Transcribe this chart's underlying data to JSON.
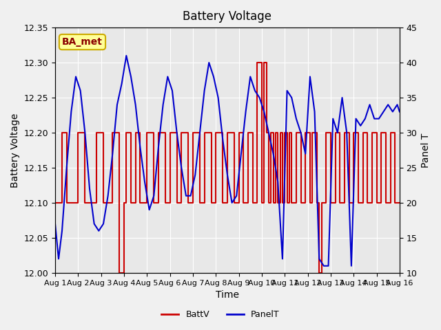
{
  "title": "Battery Voltage",
  "xlabel": "Time",
  "ylabel_left": "Battery Voltage",
  "ylabel_right": "Panel T",
  "xlim": [
    0,
    15
  ],
  "ylim_left": [
    12.0,
    12.35
  ],
  "ylim_right": [
    10,
    45
  ],
  "xtick_labels": [
    "Aug 1",
    "Aug 2",
    "Aug 3",
    "Aug 4",
    "Aug 5",
    "Aug 6",
    "Aug 7",
    "Aug 8",
    "Aug 9",
    "Aug 10",
    "Aug 11",
    "Aug 12",
    "Aug 13",
    "Aug 14",
    "Aug 15",
    "Aug 16"
  ],
  "yticks_left": [
    12.0,
    12.05,
    12.1,
    12.15,
    12.2,
    12.25,
    12.3,
    12.35
  ],
  "yticks_right": [
    10,
    15,
    20,
    25,
    30,
    35,
    40,
    45
  ],
  "background_color": "#f0f0f0",
  "plot_bg_color": "#e8e8e8",
  "grid_color": "#ffffff",
  "annotation_text": "BA_met",
  "annotation_bg": "#ffff99",
  "annotation_border": "#ccaa00",
  "batt_color": "#cc0000",
  "panel_color": "#0000cc",
  "legend_batt": "BattV",
  "legend_panel": "PanelT",
  "batt_data": [
    [
      0.0,
      12.1
    ],
    [
      0.3,
      12.1
    ],
    [
      0.3,
      12.2
    ],
    [
      0.5,
      12.2
    ],
    [
      0.5,
      12.1
    ],
    [
      1.0,
      12.1
    ],
    [
      1.0,
      12.2
    ],
    [
      1.3,
      12.2
    ],
    [
      1.3,
      12.1
    ],
    [
      1.8,
      12.1
    ],
    [
      1.8,
      12.2
    ],
    [
      2.1,
      12.2
    ],
    [
      2.1,
      12.1
    ],
    [
      2.5,
      12.1
    ],
    [
      2.5,
      12.2
    ],
    [
      2.8,
      12.2
    ],
    [
      2.8,
      12.0
    ],
    [
      3.0,
      12.0
    ],
    [
      3.0,
      12.1
    ],
    [
      3.0,
      12.1
    ],
    [
      3.1,
      12.1
    ],
    [
      3.1,
      12.2
    ],
    [
      3.3,
      12.2
    ],
    [
      3.3,
      12.1
    ],
    [
      3.5,
      12.1
    ],
    [
      3.5,
      12.2
    ],
    [
      3.7,
      12.2
    ],
    [
      3.7,
      12.1
    ],
    [
      4.0,
      12.1
    ],
    [
      4.0,
      12.2
    ],
    [
      4.3,
      12.2
    ],
    [
      4.3,
      12.1
    ],
    [
      4.5,
      12.1
    ],
    [
      4.5,
      12.2
    ],
    [
      4.8,
      12.2
    ],
    [
      4.8,
      12.1
    ],
    [
      5.0,
      12.1
    ],
    [
      5.0,
      12.2
    ],
    [
      5.3,
      12.2
    ],
    [
      5.3,
      12.1
    ],
    [
      5.5,
      12.1
    ],
    [
      5.5,
      12.2
    ],
    [
      5.8,
      12.2
    ],
    [
      5.8,
      12.1
    ],
    [
      6.0,
      12.1
    ],
    [
      6.0,
      12.2
    ],
    [
      6.3,
      12.2
    ],
    [
      6.3,
      12.1
    ],
    [
      6.5,
      12.1
    ],
    [
      6.5,
      12.2
    ],
    [
      6.8,
      12.2
    ],
    [
      6.8,
      12.1
    ],
    [
      7.0,
      12.1
    ],
    [
      7.0,
      12.2
    ],
    [
      7.3,
      12.2
    ],
    [
      7.3,
      12.1
    ],
    [
      7.5,
      12.1
    ],
    [
      7.5,
      12.2
    ],
    [
      7.8,
      12.2
    ],
    [
      7.8,
      12.1
    ],
    [
      8.0,
      12.1
    ],
    [
      8.0,
      12.2
    ],
    [
      8.2,
      12.2
    ],
    [
      8.2,
      12.1
    ],
    [
      8.4,
      12.1
    ],
    [
      8.4,
      12.2
    ],
    [
      8.6,
      12.2
    ],
    [
      8.6,
      12.1
    ],
    [
      8.8,
      12.1
    ],
    [
      8.8,
      12.3
    ],
    [
      9.0,
      12.3
    ],
    [
      9.0,
      12.1
    ],
    [
      9.1,
      12.1
    ],
    [
      9.1,
      12.3
    ],
    [
      9.2,
      12.3
    ],
    [
      9.2,
      12.2
    ],
    [
      9.3,
      12.2
    ],
    [
      9.3,
      12.1
    ],
    [
      9.4,
      12.1
    ],
    [
      9.4,
      12.2
    ],
    [
      9.5,
      12.2
    ],
    [
      9.5,
      12.1
    ],
    [
      9.6,
      12.1
    ],
    [
      9.6,
      12.2
    ],
    [
      9.7,
      12.2
    ],
    [
      9.7,
      12.1
    ],
    [
      9.8,
      12.1
    ],
    [
      9.8,
      12.2
    ],
    [
      9.9,
      12.2
    ],
    [
      9.9,
      12.1
    ],
    [
      10.0,
      12.1
    ],
    [
      10.0,
      12.2
    ],
    [
      10.1,
      12.2
    ],
    [
      10.1,
      12.1
    ],
    [
      10.2,
      12.1
    ],
    [
      10.2,
      12.2
    ],
    [
      10.3,
      12.2
    ],
    [
      10.3,
      12.1
    ],
    [
      10.5,
      12.1
    ],
    [
      10.5,
      12.2
    ],
    [
      10.7,
      12.2
    ],
    [
      10.7,
      12.1
    ],
    [
      10.9,
      12.1
    ],
    [
      10.9,
      12.2
    ],
    [
      11.1,
      12.2
    ],
    [
      11.1,
      12.1
    ],
    [
      11.1,
      12.1
    ],
    [
      11.2,
      12.1
    ],
    [
      11.2,
      12.2
    ],
    [
      11.4,
      12.2
    ],
    [
      11.4,
      12.1
    ],
    [
      11.5,
      12.1
    ],
    [
      11.5,
      12.0
    ],
    [
      11.6,
      12.0
    ],
    [
      11.6,
      12.1
    ],
    [
      11.7,
      12.1
    ],
    [
      11.8,
      12.1
    ],
    [
      11.8,
      12.2
    ],
    [
      12.0,
      12.2
    ],
    [
      12.0,
      12.1
    ],
    [
      12.2,
      12.1
    ],
    [
      12.2,
      12.2
    ],
    [
      12.4,
      12.2
    ],
    [
      12.4,
      12.1
    ],
    [
      12.6,
      12.1
    ],
    [
      12.6,
      12.2
    ],
    [
      12.8,
      12.2
    ],
    [
      12.8,
      12.1
    ],
    [
      13.0,
      12.1
    ],
    [
      13.0,
      12.2
    ],
    [
      13.2,
      12.2
    ],
    [
      13.2,
      12.1
    ],
    [
      13.4,
      12.1
    ],
    [
      13.4,
      12.2
    ],
    [
      13.6,
      12.2
    ],
    [
      13.6,
      12.1
    ],
    [
      13.8,
      12.1
    ],
    [
      13.8,
      12.2
    ],
    [
      14.0,
      12.2
    ],
    [
      14.0,
      12.1
    ],
    [
      14.2,
      12.1
    ],
    [
      14.2,
      12.2
    ],
    [
      14.4,
      12.2
    ],
    [
      14.4,
      12.1
    ],
    [
      14.6,
      12.1
    ],
    [
      14.6,
      12.2
    ],
    [
      14.8,
      12.2
    ],
    [
      14.8,
      12.1
    ],
    [
      15.0,
      12.1
    ]
  ],
  "panel_data_x": [
    0.0,
    0.15,
    0.3,
    0.5,
    0.7,
    0.9,
    1.1,
    1.3,
    1.5,
    1.7,
    1.9,
    2.1,
    2.3,
    2.5,
    2.7,
    2.9,
    3.1,
    3.3,
    3.5,
    3.7,
    3.9,
    4.1,
    4.3,
    4.5,
    4.7,
    4.9,
    5.1,
    5.3,
    5.5,
    5.7,
    5.9,
    6.1,
    6.3,
    6.5,
    6.7,
    6.9,
    7.1,
    7.3,
    7.5,
    7.7,
    7.9,
    8.1,
    8.3,
    8.5,
    8.7,
    8.9,
    9.1,
    9.3,
    9.5,
    9.7,
    9.9,
    10.1,
    10.3,
    10.5,
    10.7,
    10.9,
    11.1,
    11.3,
    11.5,
    11.7,
    11.9,
    12.1,
    12.3,
    12.5,
    12.7,
    12.9,
    13.1,
    13.3,
    13.5,
    13.7,
    13.9,
    14.1,
    14.3,
    14.5,
    14.7,
    14.9,
    15.0
  ],
  "panel_data_y": [
    17,
    12,
    16,
    25,
    33,
    38,
    36,
    30,
    22,
    17,
    16,
    17,
    21,
    27,
    34,
    37,
    41,
    38,
    34,
    28,
    23,
    19,
    21,
    28,
    34,
    38,
    36,
    30,
    25,
    21,
    21,
    24,
    30,
    36,
    40,
    38,
    35,
    29,
    24,
    20,
    21,
    27,
    33,
    38,
    36,
    35,
    33,
    30,
    27,
    23,
    12,
    36,
    35,
    32,
    30,
    27,
    38,
    33,
    12,
    11,
    11,
    32,
    30,
    35,
    30,
    11,
    32,
    31,
    32,
    34,
    32,
    32,
    33,
    34,
    33,
    34,
    33
  ]
}
